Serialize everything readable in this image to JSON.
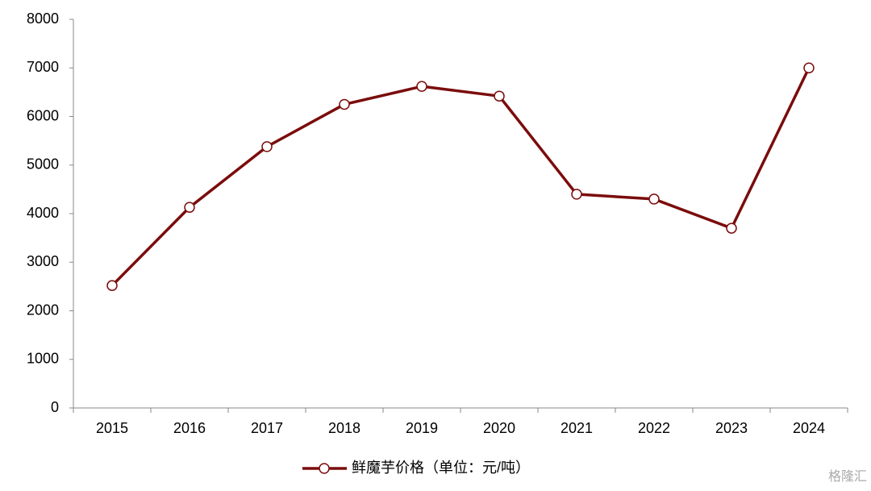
{
  "chart_data": {
    "type": "line",
    "categories": [
      "2015",
      "2016",
      "2017",
      "2018",
      "2019",
      "2020",
      "2021",
      "2022",
      "2023",
      "2024"
    ],
    "series": [
      {
        "name": "鲜魔芋价格（单位：元/吨）",
        "color": "#7b0c0c",
        "values": [
          2520,
          4130,
          5380,
          6250,
          6620,
          6420,
          4400,
          4300,
          3700,
          7000
        ]
      }
    ],
    "ylim": [
      0,
      8000
    ],
    "yticks": [
      0,
      1000,
      2000,
      3000,
      4000,
      5000,
      6000,
      7000,
      8000
    ],
    "grid": false,
    "legend": "bottom"
  },
  "watermark": "格隆汇"
}
